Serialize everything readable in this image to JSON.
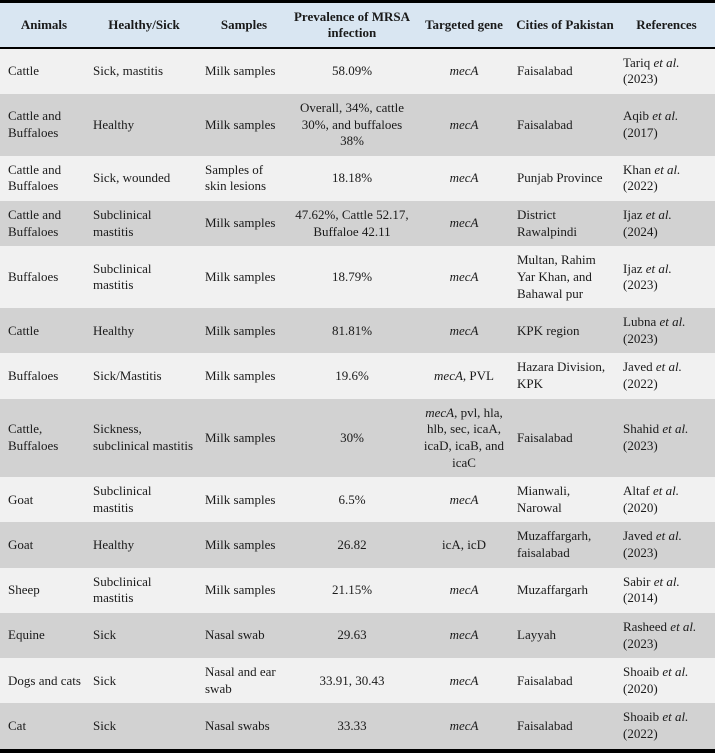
{
  "colors": {
    "header_bg": "#d9e6f2",
    "row_light": "#f1f1f1",
    "row_dark": "#d2d2d2",
    "border": "#000000",
    "text": "#1a1a1a"
  },
  "table": {
    "columns": [
      {
        "label": "Animals"
      },
      {
        "label": "Healthy/Sick"
      },
      {
        "label": "Samples"
      },
      {
        "label": "Prevalence of MRSA infection"
      },
      {
        "label": "Targeted gene"
      },
      {
        "label": "Cities of Pakistan"
      },
      {
        "label": "References"
      }
    ],
    "rows": [
      {
        "animals": "Cattle",
        "status": "Sick, mastitis",
        "samples": "Milk samples",
        "prevalence": "58.09%",
        "gene": [
          {
            "t": "mecA",
            "i": true
          }
        ],
        "city": "Faisalabad",
        "reference": [
          {
            "t": "Tariq ",
            "i": false
          },
          {
            "t": "et al.",
            "i": true
          },
          {
            "br": true
          },
          {
            "t": "(2023)",
            "i": false
          }
        ]
      },
      {
        "animals": "Cattle and Buffaloes",
        "status": "Healthy",
        "samples": "Milk samples",
        "prevalence": "Overall, 34%, cattle 30%, and buffaloes 38%",
        "gene": [
          {
            "t": "mecA",
            "i": true
          }
        ],
        "city": "Faisalabad",
        "reference": [
          {
            "t": "Aqib ",
            "i": false
          },
          {
            "t": "et al.",
            "i": true
          },
          {
            "br": true
          },
          {
            "t": "(2017)",
            "i": false
          }
        ]
      },
      {
        "animals": "Cattle and Buffaloes",
        "status": "Sick, wounded",
        "samples": "Samples of skin lesions",
        "prevalence": "18.18%",
        "gene": [
          {
            "t": "mecA",
            "i": true
          }
        ],
        "city": "Punjab Province",
        "reference": [
          {
            "t": "Khan ",
            "i": false
          },
          {
            "t": "et al.",
            "i": true
          },
          {
            "br": true
          },
          {
            "t": "(2022)",
            "i": false
          }
        ]
      },
      {
        "animals": "Cattle and Buffaloes",
        "status": "Subclinical mastitis",
        "samples": "Milk samples",
        "prevalence": "47.62%, Cattle 52.17, Buffaloe 42.11",
        "gene": [
          {
            "t": "mecA",
            "i": true
          }
        ],
        "city": "District Rawalpindi",
        "reference": [
          {
            "t": "Ijaz ",
            "i": false
          },
          {
            "t": "et al.",
            "i": true
          },
          {
            "br": true
          },
          {
            "t": "(2024)",
            "i": false
          }
        ]
      },
      {
        "animals": "Buffaloes",
        "status": "Subclinical mastitis",
        "samples": "Milk samples",
        "prevalence": "18.79%",
        "gene": [
          {
            "t": "mecA",
            "i": true
          }
        ],
        "city": "Multan, Rahim Yar Khan, and Bahawal pur",
        "reference": [
          {
            "t": "Ijaz ",
            "i": false
          },
          {
            "t": "et al.",
            "i": true
          },
          {
            "br": true
          },
          {
            "t": "(2023)",
            "i": false
          }
        ]
      },
      {
        "animals": "Cattle",
        "status": "Healthy",
        "samples": "Milk samples",
        "prevalence": "81.81%",
        "gene": [
          {
            "t": "mecA",
            "i": true
          }
        ],
        "city": "KPK region",
        "reference": [
          {
            "t": "Lubna ",
            "i": false
          },
          {
            "t": "et al.",
            "i": true
          },
          {
            "br": true
          },
          {
            "t": "(2023)",
            "i": false
          }
        ]
      },
      {
        "animals": "Buffaloes",
        "status": "Sick/Mastitis",
        "samples": "Milk samples",
        "prevalence": "19.6%",
        "gene": [
          {
            "t": "mecA",
            "i": true
          },
          {
            "t": ", PVL",
            "i": false
          }
        ],
        "city": "Hazara Division, KPK",
        "reference": [
          {
            "t": "Javed ",
            "i": false
          },
          {
            "t": "et al.",
            "i": true
          },
          {
            "br": true
          },
          {
            "t": "(2022)",
            "i": false
          }
        ]
      },
      {
        "animals": "Cattle, Buffaloes",
        "status": "Sickness, subclinical mastitis",
        "samples": "Milk samples",
        "prevalence": "30%",
        "gene": [
          {
            "t": "mecA",
            "i": true
          },
          {
            "t": ", pvl, hla, hlb, sec, icaA, icaD, icaB, and icaC",
            "i": false
          }
        ],
        "city": "Faisalabad",
        "reference": [
          {
            "t": "Shahid ",
            "i": false
          },
          {
            "t": "et al.",
            "i": true
          },
          {
            "br": true
          },
          {
            "t": "(2023)",
            "i": false
          }
        ]
      },
      {
        "animals": "Goat",
        "status": "Subclinical mastitis",
        "samples": "Milk samples",
        "prevalence": "6.5%",
        "gene": [
          {
            "t": "mecA",
            "i": true
          }
        ],
        "city": "Mianwali, Narowal",
        "reference": [
          {
            "t": "Altaf ",
            "i": false
          },
          {
            "t": "et al.",
            "i": true
          },
          {
            "br": true
          },
          {
            "t": "(2020)",
            "i": false
          }
        ]
      },
      {
        "animals": "Goat",
        "status": "Healthy",
        "samples": "Milk samples",
        "prevalence": "26.82",
        "gene": [
          {
            "t": "icA, icD",
            "i": false
          }
        ],
        "city": "Muzaffargarh, faisalabad",
        "reference": [
          {
            "t": "Javed ",
            "i": false
          },
          {
            "t": "et al.",
            "i": true
          },
          {
            "br": true
          },
          {
            "t": "(2023)",
            "i": false
          }
        ]
      },
      {
        "animals": "Sheep",
        "status": "Subclinical mastitis",
        "samples": "Milk samples",
        "prevalence": "21.15%",
        "gene": [
          {
            "t": "mecA",
            "i": true
          }
        ],
        "city": "Muzaffargarh",
        "reference": [
          {
            "t": "Sabir ",
            "i": false
          },
          {
            "t": "et al.",
            "i": true
          },
          {
            "br": true
          },
          {
            "t": "(2014)",
            "i": false
          }
        ]
      },
      {
        "animals": "Equine",
        "status": "Sick",
        "samples": "Nasal swab",
        "prevalence": "29.63",
        "gene": [
          {
            "t": "mecA",
            "i": true
          }
        ],
        "city": "Layyah",
        "reference": [
          {
            "t": "Rasheed ",
            "i": false
          },
          {
            "t": "et al.",
            "i": true
          },
          {
            "br": true
          },
          {
            "t": "(2023)",
            "i": false
          }
        ]
      },
      {
        "animals": "Dogs and cats",
        "status": "Sick",
        "samples": "Nasal and ear swab",
        "prevalence": "33.91, 30.43",
        "gene": [
          {
            "t": "mecA",
            "i": true
          }
        ],
        "city": "Faisalabad",
        "reference": [
          {
            "t": "Shoaib ",
            "i": false
          },
          {
            "t": "et al.",
            "i": true
          },
          {
            "br": true
          },
          {
            "t": "(2020)",
            "i": false
          }
        ]
      },
      {
        "animals": "Cat",
        "status": "Sick",
        "samples": "Nasal swabs",
        "prevalence": "33.33",
        "gene": [
          {
            "t": "mecA",
            "i": true
          }
        ],
        "city": "Faisalabad",
        "reference": [
          {
            "t": "Shoaib ",
            "i": false
          },
          {
            "t": "et al.",
            "i": true
          },
          {
            "br": true
          },
          {
            "t": "(2022)",
            "i": false
          }
        ]
      }
    ]
  }
}
